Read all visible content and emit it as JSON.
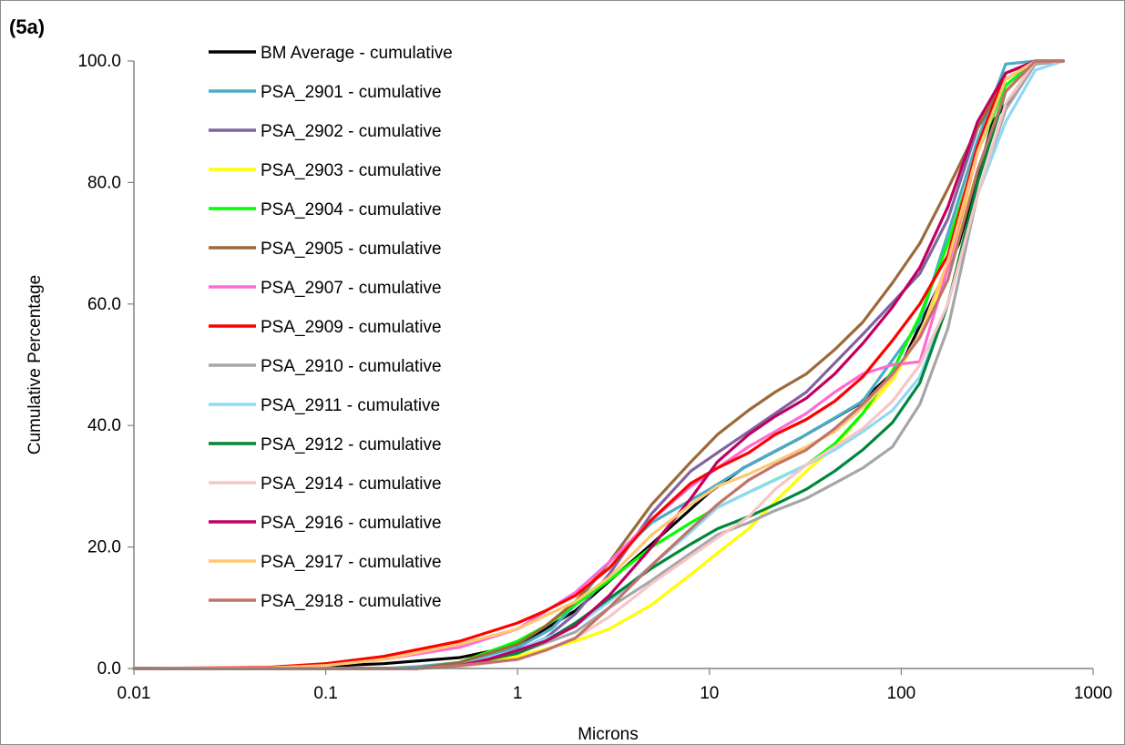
{
  "panel_label": "(5a)",
  "chart_data": {
    "type": "line",
    "title": "",
    "xlabel": "Microns",
    "ylabel": "Cumulative Percentage",
    "xscale": "log",
    "xlim": [
      0.01,
      1000
    ],
    "ylim": [
      0,
      100
    ],
    "x_ticks": [
      "0.01",
      "0.1",
      "1",
      "10",
      "100",
      "1000"
    ],
    "y_ticks": [
      "0.0",
      "20.0",
      "40.0",
      "60.0",
      "80.0",
      "100.0"
    ],
    "grid": false,
    "legend_position": "top-left",
    "series": [
      {
        "name": "BM Average - cumulative",
        "color": "#000000",
        "x": [
          0.01,
          0.05,
          0.1,
          0.2,
          0.5,
          1,
          2,
          5,
          10,
          15,
          30,
          60,
          100,
          200,
          300,
          500,
          700
        ],
        "y": [
          0,
          0.1,
          0.4,
          0.8,
          1.8,
          3.8,
          9.5,
          20.5,
          29.0,
          33.0,
          38.0,
          43.5,
          50.0,
          70.0,
          90.0,
          99.5,
          100
        ]
      },
      {
        "name": "PSA_2901 - cumulative",
        "color": "#4bacc6",
        "x": [
          0.01,
          0.2,
          0.3,
          0.5,
          1,
          1.5,
          2,
          3,
          5,
          10,
          16,
          32,
          63,
          125,
          250,
          350,
          500,
          700
        ],
        "y": [
          0,
          0,
          0.3,
          1.0,
          3.5,
          6.5,
          10.5,
          17.5,
          24.0,
          29.5,
          33.5,
          38.5,
          44.0,
          57.0,
          87.0,
          99.5,
          100,
          100
        ]
      },
      {
        "name": "PSA_2902 - cumulative",
        "color": "#8064a2",
        "x": [
          0.01,
          0.3,
          0.5,
          0.7,
          1,
          1.4,
          2,
          3,
          5,
          8,
          11,
          16,
          32,
          63,
          125,
          175,
          250,
          350,
          500,
          700
        ],
        "y": [
          0,
          0,
          0.5,
          1.3,
          3.0,
          5.0,
          9.0,
          15.5,
          25.5,
          32.5,
          35.5,
          39.0,
          45.5,
          55.0,
          65.0,
          74.0,
          89.0,
          97.0,
          100,
          100
        ]
      },
      {
        "name": "PSA_2903 - cumulative",
        "color": "#ffff00",
        "x": [
          0.01,
          0.3,
          0.5,
          1,
          2,
          3,
          5,
          8,
          11,
          16,
          22,
          32,
          45,
          63,
          90,
          125,
          175,
          250,
          350,
          500,
          700
        ],
        "y": [
          0,
          0,
          0.3,
          2.0,
          4.5,
          6.5,
          10.5,
          15.5,
          19.0,
          23.0,
          27.5,
          32.5,
          36.5,
          42.0,
          47.5,
          55.0,
          66.0,
          82.0,
          95.0,
          100,
          100
        ]
      },
      {
        "name": "PSA_2904 - cumulative",
        "color": "#00ff00",
        "x": [
          0.01,
          0.3,
          0.5,
          1,
          1.4,
          2,
          3,
          5,
          8,
          11,
          16,
          32,
          45,
          63,
          90,
          125,
          175,
          250,
          350,
          500,
          700
        ],
        "y": [
          0,
          0,
          1.0,
          4.5,
          7.0,
          10.5,
          14.5,
          20.0,
          24.0,
          26.5,
          29.0,
          33.5,
          37.0,
          42.0,
          49.0,
          58.0,
          70.0,
          85.0,
          96.0,
          100,
          100
        ]
      },
      {
        "name": "PSA_2905 - cumulative",
        "color": "#9c6a3a",
        "x": [
          0.01,
          0.3,
          0.5,
          1,
          1.4,
          2,
          3,
          5,
          8,
          11,
          16,
          22,
          32,
          45,
          63,
          90,
          125,
          175,
          250,
          350,
          500,
          700
        ],
        "y": [
          0,
          0,
          1.0,
          4.0,
          7.0,
          11.0,
          17.5,
          27.0,
          34.0,
          38.5,
          42.5,
          45.5,
          48.5,
          52.5,
          57.0,
          63.5,
          70.0,
          79.0,
          89.0,
          97.0,
          100,
          100
        ]
      },
      {
        "name": "PSA_2907 - cumulative",
        "color": "#ff6ad5",
        "x": [
          0.01,
          0.05,
          0.1,
          0.2,
          0.5,
          1,
          2,
          3,
          5,
          8,
          11,
          16,
          22,
          32,
          45,
          63,
          90,
          125,
          175,
          250,
          350,
          500,
          700
        ],
        "y": [
          0,
          0.1,
          0.5,
          1.5,
          3.5,
          6.5,
          12.5,
          17.5,
          24.5,
          30.0,
          33.0,
          36.5,
          39.0,
          42.0,
          45.5,
          48.5,
          50.0,
          50.5,
          66.0,
          85.0,
          97.0,
          100,
          100
        ]
      },
      {
        "name": "PSA_2909 - cumulative",
        "color": "#ff0000",
        "x": [
          0.01,
          0.05,
          0.1,
          0.2,
          0.5,
          1,
          1.4,
          2,
          3,
          5,
          8,
          11,
          16,
          22,
          32,
          45,
          63,
          90,
          125,
          175,
          250,
          350,
          500,
          700
        ],
        "y": [
          0,
          0.2,
          0.8,
          2.0,
          4.5,
          7.5,
          9.5,
          12.0,
          16.5,
          24.5,
          30.5,
          33.0,
          35.5,
          38.5,
          41.0,
          44.0,
          48.0,
          54.0,
          60.0,
          68.0,
          86.0,
          98.0,
          100,
          100
        ]
      },
      {
        "name": "PSA_2910 - cumulative",
        "color": "#a6a6a6",
        "x": [
          0.01,
          0.3,
          0.5,
          1,
          2,
          3,
          5,
          8,
          11,
          16,
          22,
          32,
          45,
          63,
          90,
          125,
          175,
          250,
          350,
          500,
          700
        ],
        "y": [
          0,
          0,
          0.5,
          2.5,
          6.0,
          10.0,
          14.5,
          19.0,
          22.0,
          24.0,
          26.0,
          28.0,
          30.5,
          33.0,
          36.5,
          43.5,
          56.0,
          78.0,
          92.0,
          99.5,
          100
        ]
      },
      {
        "name": "PSA_2911 - cumulative",
        "color": "#8fd8f6",
        "x": [
          0.01,
          0.3,
          0.5,
          1,
          2,
          3,
          5,
          8,
          11,
          16,
          22,
          32,
          45,
          63,
          90,
          125,
          175,
          250,
          350,
          500,
          700
        ],
        "y": [
          0,
          0,
          0.5,
          3.0,
          7.0,
          11.0,
          17.0,
          22.5,
          26.5,
          29.0,
          31.0,
          33.5,
          36.0,
          39.0,
          42.5,
          48.0,
          60.0,
          78.0,
          90.0,
          98.5,
          100
        ]
      },
      {
        "name": "PSA_2912 - cumulative",
        "color": "#00873c",
        "x": [
          0.01,
          0.3,
          0.5,
          1,
          1.4,
          2,
          3,
          5,
          8,
          11,
          16,
          22,
          32,
          45,
          63,
          90,
          125,
          175,
          250,
          350,
          500,
          700
        ],
        "y": [
          0,
          0,
          0.5,
          2.5,
          4.5,
          7.5,
          11.5,
          16.5,
          20.5,
          23.0,
          25.0,
          27.0,
          29.5,
          32.5,
          36.0,
          40.5,
          47.0,
          60.0,
          80.0,
          95.0,
          100,
          100
        ]
      },
      {
        "name": "PSA_2914 - cumulative",
        "color": "#f7c5c5",
        "x": [
          0.01,
          0.3,
          0.5,
          1,
          1.4,
          2,
          3,
          5,
          8,
          11,
          16,
          22,
          32,
          45,
          63,
          90,
          125,
          175,
          250,
          350,
          500,
          700
        ],
        "y": [
          0,
          0,
          0.3,
          1.5,
          3.0,
          5.0,
          8.5,
          14.0,
          18.5,
          21.5,
          25.0,
          29.5,
          33.5,
          36.5,
          39.5,
          44.0,
          50.0,
          60.0,
          78.0,
          93.0,
          100,
          100
        ]
      },
      {
        "name": "PSA_2916 - cumulative",
        "color": "#c00060",
        "x": [
          0.01,
          0.3,
          0.5,
          0.7,
          1,
          1.4,
          2,
          3,
          5,
          8,
          11,
          16,
          22,
          32,
          45,
          63,
          90,
          125,
          175,
          250,
          350,
          500,
          700
        ],
        "y": [
          0,
          0,
          0.5,
          1.5,
          3.0,
          4.5,
          7.0,
          12.0,
          20.0,
          28.0,
          34.0,
          38.5,
          41.5,
          44.5,
          48.5,
          53.5,
          59.5,
          66.0,
          76.0,
          90.0,
          98.0,
          100,
          100
        ]
      },
      {
        "name": "PSA_2917 - cumulative",
        "color": "#ffc870",
        "x": [
          0.01,
          0.05,
          0.1,
          0.2,
          0.5,
          1,
          2,
          3,
          5,
          8,
          11,
          16,
          22,
          32,
          45,
          63,
          90,
          125,
          175,
          250,
          350,
          500,
          700
        ],
        "y": [
          0,
          0.1,
          0.5,
          1.5,
          4.0,
          6.5,
          11.0,
          15.0,
          22.0,
          27.0,
          30.0,
          32.0,
          34.0,
          36.5,
          39.0,
          43.0,
          48.0,
          55.0,
          67.0,
          85.0,
          97.0,
          100,
          100
        ]
      },
      {
        "name": "PSA_2918 - cumulative",
        "color": "#c0736b",
        "x": [
          0.01,
          0.3,
          0.5,
          1,
          1.4,
          2,
          3,
          5,
          8,
          11,
          16,
          22,
          32,
          45,
          63,
          90,
          125,
          175,
          250,
          350,
          500,
          700
        ],
        "y": [
          0,
          0,
          0.5,
          1.5,
          3.0,
          5.0,
          10.0,
          17.0,
          23.0,
          27.0,
          31.0,
          33.5,
          36.0,
          39.5,
          43.5,
          48.5,
          54.5,
          64.0,
          82.0,
          95.0,
          100,
          100
        ]
      }
    ]
  }
}
